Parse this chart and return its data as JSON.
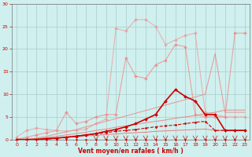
{
  "xlabel": "Vent moyen/en rafales ( km/h )",
  "bg_color": "#cff0ee",
  "grid_color": "#aacccc",
  "xlim": [
    -0.5,
    23.5
  ],
  "ylim": [
    0,
    30
  ],
  "xticks": [
    0,
    1,
    2,
    3,
    4,
    5,
    6,
    7,
    8,
    9,
    10,
    11,
    12,
    13,
    14,
    15,
    16,
    17,
    18,
    19,
    20,
    21,
    22,
    23
  ],
  "yticks": [
    0,
    5,
    10,
    15,
    20,
    25,
    30
  ],
  "lines": [
    {
      "x": [
        0,
        1,
        2,
        3,
        4,
        5,
        6,
        7,
        8,
        9,
        10,
        11,
        12,
        13,
        14,
        15,
        16,
        17,
        18,
        19,
        20,
        21,
        22,
        23
      ],
      "y": [
        0,
        0,
        0,
        0,
        0,
        0,
        0,
        0,
        0,
        0,
        0,
        0,
        0,
        0,
        0,
        0,
        0,
        0,
        0,
        0,
        0,
        0,
        0,
        0
      ],
      "color": "#cc0000",
      "lw": 0.8,
      "marker": "D",
      "ms": 1.5,
      "ls": "-",
      "alpha": 1.0,
      "zorder": 5
    },
    {
      "x": [
        0,
        1,
        2,
        3,
        4,
        5,
        6,
        7,
        8,
        9,
        10,
        11,
        12,
        13,
        14,
        15,
        16,
        17,
        18,
        19,
        20,
        21,
        22,
        23
      ],
      "y": [
        0,
        0,
        0,
        0,
        0.3,
        0.5,
        0.8,
        1.0,
        1.2,
        1.5,
        1.8,
        2.0,
        2.2,
        2.5,
        2.8,
        3.0,
        3.2,
        3.5,
        3.8,
        4.0,
        2,
        2,
        2,
        2
      ],
      "color": "#cc0000",
      "lw": 0.8,
      "marker": "D",
      "ms": 1.5,
      "ls": "--",
      "alpha": 1.0,
      "zorder": 5
    },
    {
      "x": [
        0,
        1,
        2,
        3,
        4,
        5,
        6,
        7,
        8,
        9,
        10,
        11,
        12,
        13,
        14,
        15,
        16,
        17,
        18,
        19,
        20,
        21,
        22,
        23
      ],
      "y": [
        0,
        0,
        0,
        0.2,
        0.3,
        0.5,
        0.7,
        1.0,
        1.3,
        1.8,
        2.2,
        2.8,
        3.5,
        4.5,
        5.5,
        8.5,
        11.0,
        9.5,
        8.5,
        5.5,
        5.5,
        2,
        2,
        2
      ],
      "color": "#cc0000",
      "lw": 1.2,
      "marker": "D",
      "ms": 2.0,
      "ls": "-",
      "alpha": 1.0,
      "zorder": 5
    },
    {
      "x": [
        0,
        1,
        2,
        3,
        4,
        5,
        6,
        7,
        8,
        9,
        10,
        11,
        12,
        13,
        14,
        15,
        16,
        17,
        18,
        19,
        20,
        21,
        22,
        23
      ],
      "y": [
        0,
        0,
        0.1,
        0.2,
        0.3,
        0.5,
        0.6,
        0.8,
        0.9,
        1.1,
        1.2,
        1.4,
        1.5,
        1.6,
        1.8,
        1.9,
        2.0,
        2.1,
        2.2,
        2.3,
        2.0,
        2.0,
        2.0,
        2.0
      ],
      "color": "#ee6666",
      "lw": 0.7,
      "marker": null,
      "ms": 0,
      "ls": "-",
      "alpha": 0.85,
      "zorder": 3
    },
    {
      "x": [
        0,
        1,
        2,
        3,
        4,
        5,
        6,
        7,
        8,
        9,
        10,
        11,
        12,
        13,
        14,
        15,
        16,
        17,
        18,
        19,
        20,
        21,
        22,
        23
      ],
      "y": [
        0,
        0,
        0.2,
        0.4,
        0.7,
        1.0,
        1.3,
        1.6,
        2.0,
        2.3,
        2.7,
        3.0,
        3.3,
        3.7,
        4.0,
        4.3,
        4.7,
        5.0,
        5.3,
        5.7,
        6.0,
        6.5,
        6.5,
        6.5
      ],
      "color": "#ee7777",
      "lw": 0.7,
      "marker": null,
      "ms": 0,
      "ls": "-",
      "alpha": 0.85,
      "zorder": 3
    },
    {
      "x": [
        0,
        1,
        2,
        3,
        4,
        5,
        6,
        7,
        8,
        9,
        10,
        11,
        12,
        13,
        14,
        15,
        16,
        17,
        18,
        19,
        20,
        21,
        22,
        23
      ],
      "y": [
        0,
        0,
        0.3,
        0.7,
        1.2,
        1.7,
        2.2,
        2.8,
        3.4,
        4.0,
        4.6,
        5.2,
        5.8,
        6.4,
        7.0,
        7.6,
        8.2,
        8.8,
        9.4,
        10.0,
        19.0,
        6.0,
        6.0,
        6.0
      ],
      "color": "#ee7777",
      "lw": 0.7,
      "marker": null,
      "ms": 0,
      "ls": "-",
      "alpha": 0.75,
      "zorder": 3
    },
    {
      "x": [
        0,
        1,
        2,
        3,
        4,
        5,
        6,
        7,
        8,
        9,
        10,
        11,
        12,
        13,
        14,
        15,
        16,
        17,
        18,
        19,
        20,
        21,
        22,
        23
      ],
      "y": [
        0,
        0.5,
        1.0,
        1.5,
        2.0,
        6.0,
        3.5,
        4.0,
        5.0,
        5.5,
        5.5,
        18.0,
        14.0,
        13.5,
        16.5,
        17.5,
        21.0,
        20.5,
        5.5,
        5.0,
        5.0,
        5.0,
        23.5,
        23.5
      ],
      "color": "#ee8888",
      "lw": 0.8,
      "marker": "D",
      "ms": 2.0,
      "ls": "-",
      "alpha": 0.75,
      "zorder": 4
    },
    {
      "x": [
        0,
        1,
        2,
        3,
        4,
        5,
        6,
        7,
        8,
        9,
        10,
        11,
        12,
        13,
        14,
        15,
        16,
        17,
        18,
        19,
        20,
        21,
        22,
        23
      ],
      "y": [
        0.5,
        2.0,
        2.5,
        2.2,
        2.0,
        1.8,
        2.0,
        2.3,
        3.5,
        4.5,
        24.5,
        24.0,
        26.5,
        26.5,
        25.0,
        21.0,
        22.0,
        23.0,
        23.5,
        6.0,
        5.5,
        5.0,
        5.0,
        5.0
      ],
      "color": "#ee9999",
      "lw": 0.8,
      "marker": "D",
      "ms": 2.0,
      "ls": "-",
      "alpha": 0.7,
      "zorder": 4
    }
  ],
  "wind_arrows": {
    "x": [
      8,
      9,
      10,
      11,
      12,
      13,
      14,
      15,
      16,
      17,
      18,
      19,
      20,
      21,
      22,
      23
    ],
    "color": "#cc3333"
  }
}
